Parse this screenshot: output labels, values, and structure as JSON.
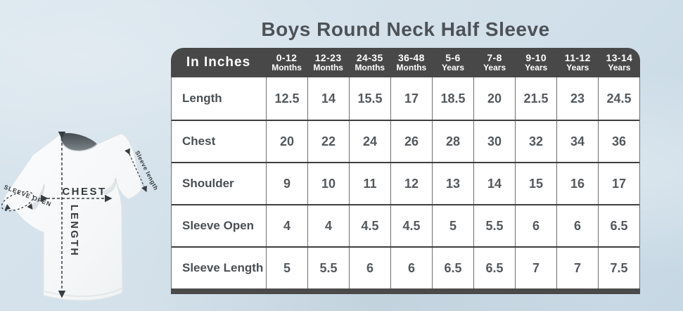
{
  "title": "Boys Round Neck Half Sleeve",
  "table": {
    "corner_label": "In Inches",
    "columns": [
      {
        "range": "0-12",
        "unit": "Months"
      },
      {
        "range": "12-23",
        "unit": "Months"
      },
      {
        "range": "24-35",
        "unit": "Months"
      },
      {
        "range": "36-48",
        "unit": "Months"
      },
      {
        "range": "5-6",
        "unit": "Years"
      },
      {
        "range": "7-8",
        "unit": "Years"
      },
      {
        "range": "9-10",
        "unit": "Years"
      },
      {
        "range": "11-12",
        "unit": "Years"
      },
      {
        "range": "13-14",
        "unit": "Years"
      }
    ],
    "rows": [
      {
        "label": "Length",
        "values": [
          "12.5",
          "14",
          "15.5",
          "17",
          "18.5",
          "20",
          "21.5",
          "23",
          "24.5"
        ]
      },
      {
        "label": "Chest",
        "values": [
          "20",
          "22",
          "24",
          "26",
          "28",
          "30",
          "32",
          "34",
          "36"
        ]
      },
      {
        "label": "Shoulder",
        "values": [
          "9",
          "10",
          "11",
          "12",
          "13",
          "14",
          "15",
          "16",
          "17"
        ]
      },
      {
        "label": "Sleeve Open",
        "values": [
          "4",
          "4",
          "4.5",
          "4.5",
          "5",
          "5.5",
          "6",
          "6",
          "6.5"
        ]
      },
      {
        "label": "Sleeve Length",
        "values": [
          "5",
          "5.5",
          "6",
          "6",
          "6.5",
          "6.5",
          "7",
          "7",
          "7.5"
        ]
      }
    ]
  },
  "diagram": {
    "chest_label": "CHEST",
    "length_label": "LENGTH",
    "sleeve_open_label": "SLEEVE OPEN",
    "sleeve_length_label": "Sleeve length"
  },
  "colors": {
    "background": "#d2e0ea",
    "table_header_bg": "#484848",
    "table_header_text": "#ffffff",
    "cell_bg": "#ffffff",
    "cell_text": "#54585c",
    "row_border": "#3e3e3e",
    "column_border": "#6e6e6e",
    "title_text": "#4d5257",
    "footer_bar": "#4a4a4a",
    "annotation": "#363c40"
  },
  "chart_data": {
    "type": "table",
    "title": "Boys Round Neck Half Sleeve",
    "unit": "In Inches",
    "columns": [
      "0-12 Months",
      "12-23 Months",
      "24-35 Months",
      "36-48 Months",
      "5-6 Years",
      "7-8 Years",
      "9-10 Years",
      "11-12 Years",
      "13-14 Years"
    ],
    "rows": [
      {
        "measure": "Length",
        "values": [
          12.5,
          14,
          15.5,
          17,
          18.5,
          20,
          21.5,
          23,
          24.5
        ]
      },
      {
        "measure": "Chest",
        "values": [
          20,
          22,
          24,
          26,
          28,
          30,
          32,
          34,
          36
        ]
      },
      {
        "measure": "Shoulder",
        "values": [
          9,
          10,
          11,
          12,
          13,
          14,
          15,
          16,
          17
        ]
      },
      {
        "measure": "Sleeve Open",
        "values": [
          4,
          4,
          4.5,
          4.5,
          5,
          5.5,
          6,
          6,
          6.5
        ]
      },
      {
        "measure": "Sleeve Length",
        "values": [
          5,
          5.5,
          6,
          6,
          6.5,
          6.5,
          7,
          7,
          7.5
        ]
      }
    ]
  }
}
